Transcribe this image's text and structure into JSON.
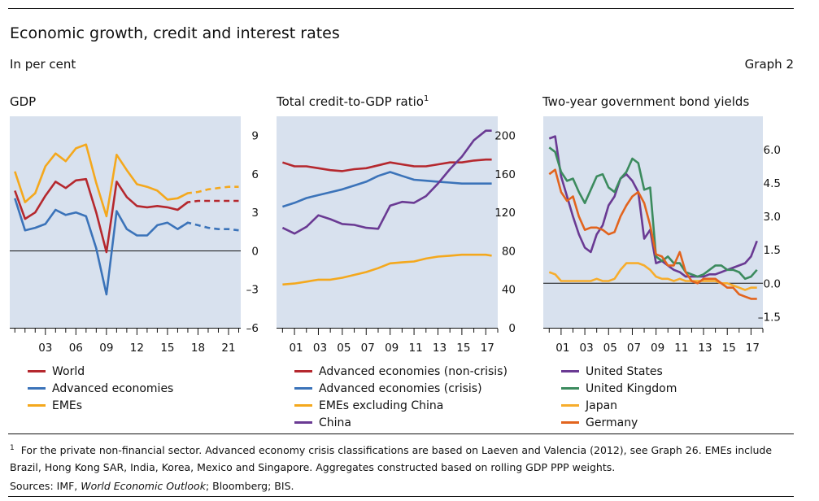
{
  "title": "Economic growth, credit and interest rates",
  "units": "In per cent",
  "graph_label": "Graph 2",
  "footnote": {
    "marker": "1",
    "text": "For the private non-financial sector. Advanced economy crisis classifications are based on Laeven and Valencia (2012), see Graph 26. EMEs include Brazil, Hong Kong SAR, India, Korea, Mexico and Singapore. Aggregates constructed based on rolling GDP PPP weights."
  },
  "sources": {
    "prefix": "Sources: IMF, ",
    "italic": "World Economic Outlook",
    "suffix": "; Bloomberg; BIS."
  },
  "colors": {
    "red": "#b5282e",
    "blue": "#3b73b9",
    "orange": "#f4a81d",
    "purple": "#6a3a93",
    "green": "#3c8b5e",
    "japan": "#f7ad2c",
    "germany": "#e2641e",
    "panel_bg": "#d8e1ee"
  },
  "chart_data": [
    {
      "id": "gdp",
      "type": "line",
      "title": "GDP",
      "ylim": [
        -6,
        10.5
      ],
      "y_ticks": [
        9,
        6,
        3,
        0,
        -3,
        -6
      ],
      "y_tick_labels": [
        "9",
        "6",
        "3",
        "0",
        "–3",
        "–6"
      ],
      "zero_line": 0,
      "xlim": [
        1999.5,
        2022.2
      ],
      "x_ticks": [
        2003,
        2006,
        2009,
        2012,
        2015,
        2018,
        2021
      ],
      "x_tick_labels": [
        "03",
        "06",
        "09",
        "12",
        "15",
        "18",
        "21"
      ],
      "x_minor_ticks": "annual",
      "dashed_from": 2017,
      "series": [
        {
          "name": "World",
          "color_key": "red",
          "x": [
            2000,
            2001,
            2002,
            2003,
            2004,
            2005,
            2006,
            2007,
            2008,
            2009,
            2010,
            2011,
            2012,
            2013,
            2014,
            2015,
            2016,
            2017,
            2018,
            2019,
            2020,
            2021,
            2022
          ],
          "y": [
            4.7,
            2.5,
            3.0,
            4.3,
            5.4,
            4.9,
            5.5,
            5.6,
            3.0,
            -0.1,
            5.4,
            4.2,
            3.5,
            3.4,
            3.5,
            3.4,
            3.2,
            3.8,
            3.9,
            3.9,
            3.9,
            3.9,
            3.9
          ]
        },
        {
          "name": "Advanced economies",
          "color_key": "blue",
          "x": [
            2000,
            2001,
            2002,
            2003,
            2004,
            2005,
            2006,
            2007,
            2008,
            2009,
            2010,
            2011,
            2012,
            2013,
            2014,
            2015,
            2016,
            2017,
            2018,
            2019,
            2020,
            2021,
            2022
          ],
          "y": [
            4.1,
            1.6,
            1.8,
            2.1,
            3.2,
            2.8,
            3.0,
            2.7,
            0.2,
            -3.4,
            3.1,
            1.7,
            1.2,
            1.2,
            2.0,
            2.2,
            1.7,
            2.2,
            2.0,
            1.8,
            1.7,
            1.7,
            1.6
          ]
        },
        {
          "name": "EMEs",
          "color_key": "orange",
          "x": [
            2000,
            2001,
            2002,
            2003,
            2004,
            2005,
            2006,
            2007,
            2008,
            2009,
            2010,
            2011,
            2012,
            2013,
            2014,
            2015,
            2016,
            2017,
            2018,
            2019,
            2020,
            2021,
            2022
          ],
          "y": [
            6.2,
            3.8,
            4.5,
            6.6,
            7.6,
            7.0,
            8.0,
            8.3,
            5.3,
            2.7,
            7.5,
            6.3,
            5.2,
            5.0,
            4.7,
            4.0,
            4.1,
            4.5,
            4.6,
            4.8,
            4.9,
            5.0,
            5.0
          ]
        }
      ],
      "legend": [
        "World",
        "Advanced economies",
        "EMEs"
      ]
    },
    {
      "id": "credit",
      "type": "line",
      "title": "Total credit-to-GDP ratio",
      "title_sup": "1",
      "ylim": [
        0,
        220
      ],
      "y_ticks": [
        200,
        160,
        120,
        80,
        40,
        0
      ],
      "y_tick_labels": [
        "200",
        "160",
        "120",
        "80",
        "40",
        "0"
      ],
      "xlim": [
        1999.5,
        2018.0
      ],
      "x_ticks": [
        2001,
        2003,
        2005,
        2007,
        2009,
        2011,
        2013,
        2015,
        2017
      ],
      "x_tick_labels": [
        "01",
        "03",
        "05",
        "07",
        "09",
        "11",
        "13",
        "15",
        "17"
      ],
      "x_minor_ticks": "annual",
      "series": [
        {
          "name": "Advanced economies (non-crisis)",
          "color_key": "red",
          "x": [
            2000,
            2001,
            2002,
            2003,
            2004,
            2005,
            2006,
            2007,
            2008,
            2009,
            2010,
            2011,
            2012,
            2013,
            2014,
            2015,
            2016,
            2017,
            2017.5
          ],
          "y": [
            172,
            168,
            168,
            166,
            164,
            163,
            165,
            166,
            169,
            172,
            170,
            168,
            168,
            170,
            172,
            172,
            174,
            175,
            175
          ]
        },
        {
          "name": "Advanced economies (crisis)",
          "color_key": "blue",
          "x": [
            2000,
            2001,
            2002,
            2003,
            2004,
            2005,
            2006,
            2007,
            2008,
            2009,
            2010,
            2011,
            2012,
            2013,
            2014,
            2015,
            2016,
            2017,
            2017.5
          ],
          "y": [
            126,
            130,
            135,
            138,
            141,
            144,
            148,
            152,
            158,
            162,
            158,
            154,
            153,
            152,
            151,
            150,
            150,
            150,
            150
          ]
        },
        {
          "name": "EMEs excluding China",
          "color_key": "orange",
          "x": [
            2000,
            2001,
            2002,
            2003,
            2004,
            2005,
            2006,
            2007,
            2008,
            2009,
            2010,
            2011,
            2012,
            2013,
            2014,
            2015,
            2016,
            2017,
            2017.5
          ],
          "y": [
            45,
            46,
            48,
            50,
            50,
            52,
            55,
            58,
            62,
            67,
            68,
            69,
            72,
            74,
            75,
            76,
            76,
            76,
            75
          ]
        },
        {
          "name": "China",
          "color_key": "purple",
          "x": [
            2000,
            2001,
            2002,
            2003,
            2004,
            2005,
            2006,
            2007,
            2008,
            2009,
            2010,
            2011,
            2012,
            2013,
            2014,
            2015,
            2016,
            2017,
            2017.5
          ],
          "y": [
            104,
            98,
            105,
            117,
            113,
            108,
            107,
            104,
            103,
            127,
            131,
            130,
            137,
            150,
            165,
            178,
            195,
            205,
            205
          ]
        }
      ],
      "legend": [
        "Advanced economies (non-crisis)",
        "Advanced economies (crisis)",
        "EMEs excluding China",
        "China"
      ]
    },
    {
      "id": "yields",
      "type": "line",
      "title": "Two-year government bond yields",
      "ylim": [
        -2.0,
        7.5
      ],
      "y_ticks": [
        6.0,
        4.5,
        3.0,
        1.5,
        0.0,
        -1.5
      ],
      "y_tick_labels": [
        "6.0",
        "4.5",
        "3.0",
        "1.5",
        "0.0",
        "–1.5"
      ],
      "zero_line": 0,
      "xlim": [
        1999.5,
        2018.0
      ],
      "x_ticks": [
        2001,
        2003,
        2005,
        2007,
        2009,
        2011,
        2013,
        2015,
        2017
      ],
      "x_tick_labels": [
        "01",
        "03",
        "05",
        "07",
        "09",
        "11",
        "13",
        "15",
        "17"
      ],
      "x_minor_ticks": "annual",
      "series": [
        {
          "name": "United States",
          "color_key": "purple",
          "x": [
            2000,
            2000.5,
            2001,
            2001.5,
            2002,
            2002.5,
            2003,
            2003.5,
            2004,
            2004.5,
            2005,
            2005.5,
            2006,
            2006.5,
            2007,
            2007.5,
            2008,
            2008.5,
            2009,
            2009.5,
            2010,
            2010.5,
            2011,
            2011.5,
            2012,
            2012.5,
            2013,
            2013.5,
            2014,
            2014.5,
            2015,
            2015.5,
            2016,
            2016.5,
            2017,
            2017.5
          ],
          "y": [
            6.5,
            6.6,
            4.8,
            3.9,
            3.0,
            2.2,
            1.6,
            1.4,
            2.2,
            2.6,
            3.5,
            3.9,
            4.7,
            4.9,
            4.6,
            4.1,
            2.0,
            2.4,
            0.9,
            1.0,
            0.8,
            0.6,
            0.5,
            0.3,
            0.3,
            0.3,
            0.3,
            0.4,
            0.4,
            0.5,
            0.6,
            0.7,
            0.8,
            0.9,
            1.2,
            1.9
          ]
        },
        {
          "name": "United Kingdom",
          "color_key": "green",
          "x": [
            2000,
            2000.5,
            2001,
            2001.5,
            2002,
            2002.5,
            2003,
            2003.5,
            2004,
            2004.5,
            2005,
            2005.5,
            2006,
            2006.5,
            2007,
            2007.5,
            2008,
            2008.5,
            2009,
            2009.5,
            2010,
            2010.5,
            2011,
            2011.5,
            2012,
            2012.5,
            2013,
            2013.5,
            2014,
            2014.5,
            2015,
            2015.5,
            2016,
            2016.5,
            2017,
            2017.5
          ],
          "y": [
            6.1,
            5.9,
            5.0,
            4.6,
            4.7,
            4.1,
            3.6,
            4.2,
            4.8,
            4.9,
            4.3,
            4.1,
            4.7,
            5.0,
            5.6,
            5.4,
            4.2,
            4.3,
            1.2,
            1.0,
            1.2,
            0.9,
            0.9,
            0.5,
            0.4,
            0.3,
            0.4,
            0.6,
            0.8,
            0.8,
            0.6,
            0.6,
            0.5,
            0.2,
            0.3,
            0.6
          ]
        },
        {
          "name": "Japan",
          "color_key": "japan",
          "x": [
            2000,
            2000.5,
            2001,
            2001.5,
            2002,
            2002.5,
            2003,
            2003.5,
            2004,
            2004.5,
            2005,
            2005.5,
            2006,
            2006.5,
            2007,
            2007.5,
            2008,
            2008.5,
            2009,
            2009.5,
            2010,
            2010.5,
            2011,
            2011.5,
            2012,
            2012.5,
            2013,
            2013.5,
            2014,
            2014.5,
            2015,
            2015.5,
            2016,
            2016.5,
            2017,
            2017.5
          ],
          "y": [
            0.5,
            0.4,
            0.1,
            0.1,
            0.1,
            0.1,
            0.1,
            0.1,
            0.2,
            0.1,
            0.1,
            0.2,
            0.6,
            0.9,
            0.9,
            0.9,
            0.8,
            0.6,
            0.3,
            0.2,
            0.2,
            0.1,
            0.2,
            0.1,
            0.1,
            0.1,
            0.1,
            0.1,
            0.1,
            0.0,
            0.0,
            -0.1,
            -0.2,
            -0.3,
            -0.2,
            -0.2
          ]
        },
        {
          "name": "Germany",
          "color_key": "germany",
          "x": [
            2000,
            2000.5,
            2001,
            2001.5,
            2002,
            2002.5,
            2003,
            2003.5,
            2004,
            2004.5,
            2005,
            2005.5,
            2006,
            2006.5,
            2007,
            2007.5,
            2008,
            2008.5,
            2009,
            2009.5,
            2010,
            2010.5,
            2011,
            2011.5,
            2012,
            2012.5,
            2013,
            2013.5,
            2014,
            2014.5,
            2015,
            2015.5,
            2016,
            2016.5,
            2017,
            2017.5
          ],
          "y": [
            4.9,
            5.1,
            4.1,
            3.7,
            3.9,
            3.0,
            2.4,
            2.5,
            2.5,
            2.4,
            2.2,
            2.3,
            3.0,
            3.5,
            3.9,
            4.1,
            3.6,
            2.6,
            1.3,
            1.2,
            0.8,
            0.8,
            1.4,
            0.5,
            0.1,
            0.0,
            0.2,
            0.2,
            0.2,
            0.0,
            -0.2,
            -0.2,
            -0.5,
            -0.6,
            -0.7,
            -0.7
          ]
        }
      ],
      "legend": [
        "United States",
        "United Kingdom",
        "Japan",
        "Germany"
      ]
    }
  ]
}
